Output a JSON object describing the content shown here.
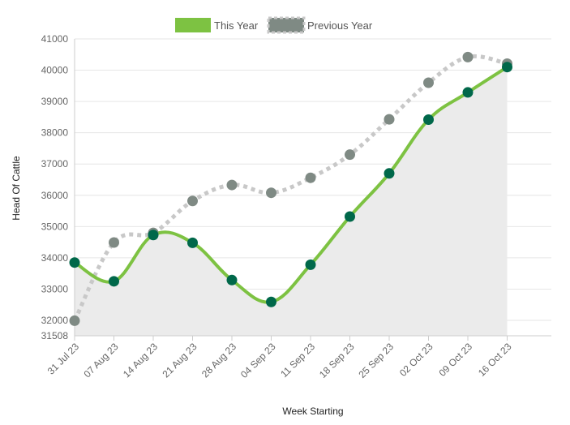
{
  "chart_data": {
    "type": "line",
    "title": "",
    "xlabel": "Week Starting",
    "ylabel": "Head Of Cattle",
    "categories": [
      "31 Jul 23",
      "07 Aug 23",
      "14 Aug 23",
      "21 Aug 23",
      "28 Aug 23",
      "04 Sep 23",
      "11 Sep 23",
      "18 Sep 23",
      "25 Sep 23",
      "02 Oct 23",
      "09 Oct 23",
      "16 Oct 23"
    ],
    "ylim": [
      31508,
      41000
    ],
    "y_ticks": [
      "31508",
      "32000",
      "33000",
      "34000",
      "35000",
      "36000",
      "37000",
      "38000",
      "39000",
      "40000",
      "41000"
    ],
    "grid": true,
    "legend_position": "top-center",
    "series": [
      {
        "name": "This Year",
        "color": "#7dc242",
        "marker_color": "#00684a",
        "style": "solid",
        "area_fill": "#ebebeb",
        "values": [
          33850,
          33250,
          34730,
          34480,
          33290,
          32590,
          33780,
          35320,
          36700,
          38420,
          39290,
          40100
        ]
      },
      {
        "name": "Previous Year",
        "color": "#c8c8c8",
        "marker_color": "#7f8a84",
        "style": "dotted",
        "values": [
          31990,
          34490,
          34800,
          35820,
          36330,
          36080,
          36560,
          37300,
          38430,
          39600,
          40420,
          40210
        ]
      }
    ]
  }
}
